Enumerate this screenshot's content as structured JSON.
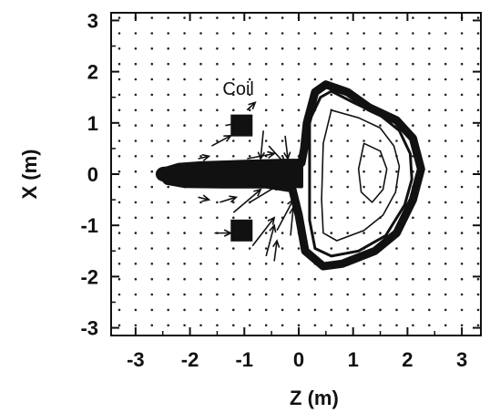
{
  "chart_data": {
    "type": "scatter",
    "title": "",
    "xlabel": "Z (m)",
    "ylabel": "X (m)",
    "xlim": [
      -3.45,
      3.35
    ],
    "ylim": [
      -3.15,
      3.15
    ],
    "x_ticks": [
      -3,
      -2,
      -1,
      0,
      1,
      2,
      3
    ],
    "y_ticks": [
      -3,
      -2,
      -1,
      0,
      1,
      2,
      3
    ],
    "grid": false,
    "annotation": {
      "text": "Coil",
      "x": -1.4,
      "y": 1.55
    },
    "coils": [
      {
        "name": "coil-upper",
        "z": -1.05,
        "x": 0.95
      },
      {
        "name": "coil-lower",
        "z": -1.05,
        "x": -1.1
      }
    ],
    "plasma_contours": [
      [
        [
          0.05,
          0.22
        ],
        [
          -0.3,
          0.22
        ],
        [
          -1.0,
          0.2
        ],
        [
          -1.8,
          0.17
        ],
        [
          -2.2,
          0.14
        ],
        [
          -2.45,
          0.06
        ],
        [
          -2.5,
          -0.03
        ],
        [
          -2.42,
          -0.13
        ],
        [
          -2.1,
          -0.19
        ],
        [
          -1.4,
          -0.2
        ],
        [
          -0.6,
          -0.2
        ],
        [
          -0.12,
          -0.28
        ],
        [
          0.0,
          -0.8
        ],
        [
          0.12,
          -1.5
        ],
        [
          0.45,
          -1.8
        ],
        [
          0.8,
          -1.75
        ],
        [
          1.4,
          -1.5
        ],
        [
          1.8,
          -1.15
        ],
        [
          2.1,
          -0.5
        ],
        [
          2.25,
          0.1
        ],
        [
          2.1,
          0.7
        ],
        [
          1.8,
          1.05
        ],
        [
          1.3,
          1.3
        ],
        [
          0.9,
          1.6
        ],
        [
          0.5,
          1.75
        ],
        [
          0.3,
          1.6
        ],
        [
          0.15,
          1.0
        ],
        [
          0.1,
          0.5
        ],
        [
          0.05,
          0.22
        ]
      ],
      [
        [
          0.2,
          1.05
        ],
        [
          0.4,
          1.5
        ],
        [
          0.6,
          1.62
        ],
        [
          1.0,
          1.4
        ],
        [
          1.5,
          1.15
        ],
        [
          1.85,
          0.85
        ],
        [
          2.05,
          0.4
        ],
        [
          2.08,
          -0.1
        ],
        [
          1.95,
          -0.6
        ],
        [
          1.6,
          -1.2
        ],
        [
          1.1,
          -1.5
        ],
        [
          0.6,
          -1.6
        ],
        [
          0.3,
          -1.45
        ],
        [
          0.2,
          -0.9
        ],
        [
          0.2,
          1.05
        ]
      ],
      [
        [
          0.6,
          1.25
        ],
        [
          1.1,
          1.1
        ],
        [
          1.5,
          0.9
        ],
        [
          1.75,
          0.55
        ],
        [
          1.85,
          0.15
        ],
        [
          1.78,
          -0.35
        ],
        [
          1.55,
          -0.8
        ],
        [
          1.2,
          -1.1
        ],
        [
          0.7,
          -1.3
        ],
        [
          0.45,
          -1.15
        ],
        [
          0.42,
          -0.5
        ],
        [
          0.45,
          0.6
        ],
        [
          0.6,
          1.25
        ]
      ],
      [
        [
          1.2,
          0.6
        ],
        [
          1.5,
          0.45
        ],
        [
          1.62,
          0.1
        ],
        [
          1.55,
          -0.3
        ],
        [
          1.35,
          -0.55
        ],
        [
          1.15,
          -0.35
        ],
        [
          1.1,
          0.1
        ],
        [
          1.2,
          0.6
        ]
      ]
    ],
    "plasma_jet": {
      "z_start": -2.48,
      "z_end": 0.05,
      "half_width_start": 0.11,
      "half_width_end": 0.24
    },
    "field_vectors": [
      {
        "z": -0.65,
        "x": 0.85,
        "dz": -0.05,
        "dx": -0.55
      },
      {
        "z": -0.55,
        "x": 0.55,
        "dz": 0.3,
        "dx": -0.35
      },
      {
        "z": -0.25,
        "x": 0.75,
        "dz": 0.05,
        "dx": -0.45
      },
      {
        "z": -1.6,
        "x": 0.55,
        "dz": 0.35,
        "dx": 0.2
      },
      {
        "z": -1.35,
        "x": 0.95,
        "dz": 0.25,
        "dx": 0.05
      },
      {
        "z": -0.95,
        "x": 0.3,
        "dz": 0.5,
        "dx": 0.1
      },
      {
        "z": -0.95,
        "x": 1.25,
        "dz": 0.15,
        "dx": 0.15
      },
      {
        "z": -1.2,
        "x": -0.75,
        "dz": 0.5,
        "dx": 0.45
      },
      {
        "z": -0.9,
        "x": -0.55,
        "dz": 0.55,
        "dx": 0.35
      },
      {
        "z": -0.85,
        "x": -1.4,
        "dz": 0.4,
        "dx": 0.55
      },
      {
        "z": -0.6,
        "x": -1.6,
        "dz": 0.15,
        "dx": 0.6
      },
      {
        "z": -0.4,
        "x": -1.1,
        "dz": 0.3,
        "dx": 0.6
      },
      {
        "z": -0.15,
        "x": -1.2,
        "dz": 0.05,
        "dx": 0.55
      },
      {
        "z": -1.55,
        "x": -1.15,
        "dz": 0.3,
        "dx": 0.0
      },
      {
        "z": -1.45,
        "x": -0.55,
        "dz": 0.3,
        "dx": 0.1
      },
      {
        "z": -0.45,
        "x": -1.7,
        "dz": 0.05,
        "dx": 0.4
      },
      {
        "z": -1.85,
        "x": 0.3,
        "dz": 0.2,
        "dx": 0.05
      },
      {
        "z": -1.85,
        "x": -0.45,
        "dz": 0.2,
        "dx": -0.05
      }
    ]
  }
}
